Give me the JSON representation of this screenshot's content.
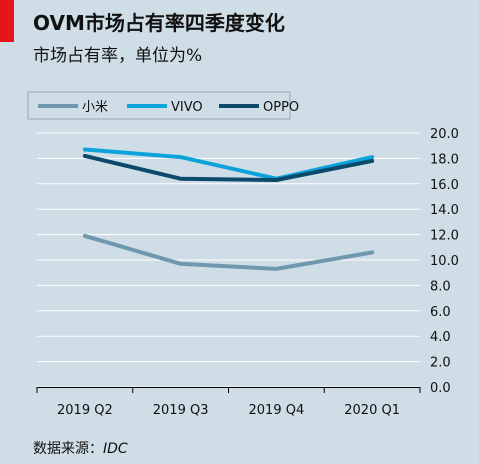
{
  "header": {
    "title": "OVM市场占有率四季度变化",
    "subtitle": "市场占有率，单位为%"
  },
  "footer": {
    "source_label": "数据来源：",
    "source_name": "IDC"
  },
  "colors": {
    "accent": "#e8141b",
    "background": "#cfdde6",
    "grid": "#ffffff"
  },
  "chart_data": {
    "type": "line",
    "categories": [
      "2019 Q2",
      "2019 Q3",
      "2019 Q4",
      "2020 Q1"
    ],
    "ylim": [
      0,
      20
    ],
    "yticks": [
      "0.0",
      "2.0",
      "4.0",
      "6.0",
      "8.0",
      "10.0",
      "12.0",
      "14.0",
      "16.0",
      "18.0",
      "20.0"
    ],
    "grid": true,
    "legend_position": "top-left",
    "series": [
      {
        "name": "小米",
        "color": "#6f97ad",
        "values": [
          11.9,
          9.7,
          9.3,
          10.6
        ]
      },
      {
        "name": "VIVO",
        "color": "#0ca3db",
        "values": [
          18.7,
          18.1,
          16.4,
          18.1
        ]
      },
      {
        "name": "OPPO",
        "color": "#0b4a6b",
        "values": [
          18.2,
          16.4,
          16.3,
          17.8
        ]
      }
    ]
  }
}
